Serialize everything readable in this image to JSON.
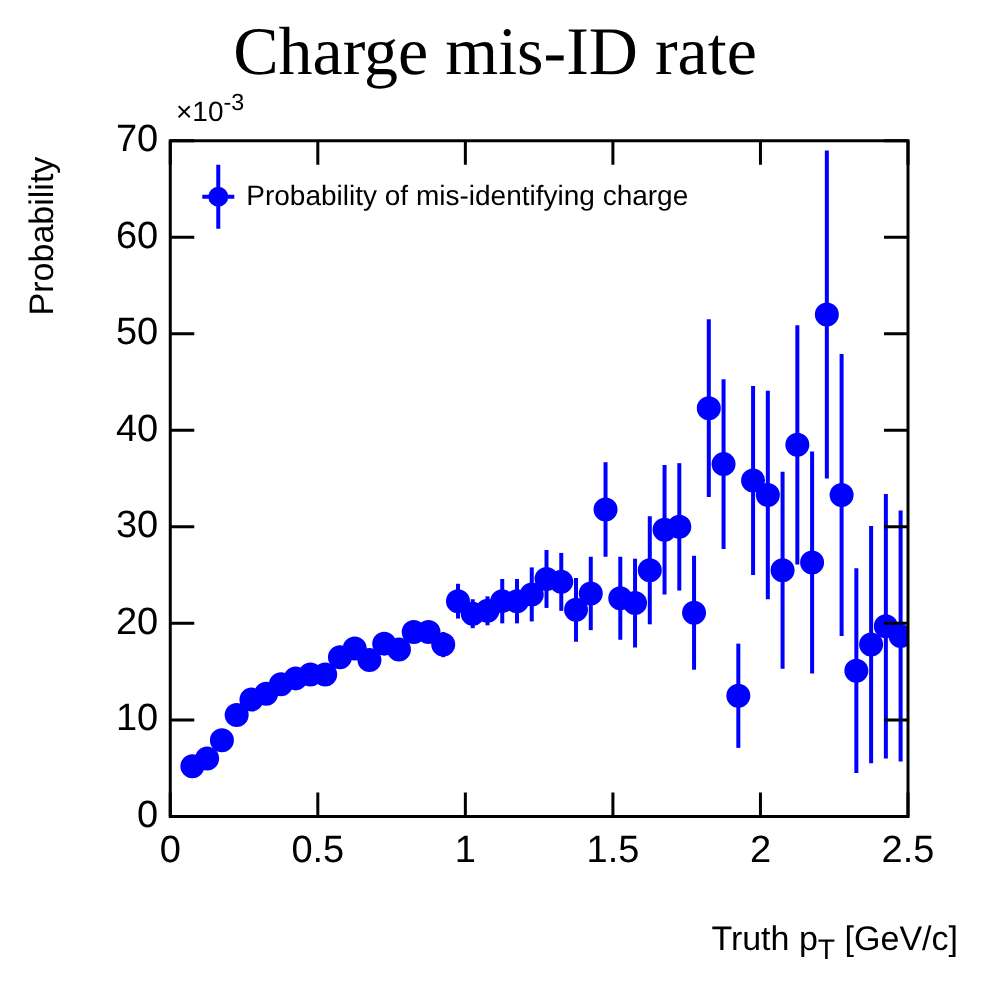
{
  "chart_data": {
    "type": "scatter",
    "title": "Charge mis-ID rate",
    "xlabel": "Truth p$_{T}$ [GeV/c]",
    "ylabel": "Probability",
    "annotations": [
      "×10$^{-3}$"
    ],
    "x": [
      0.075,
      0.125,
      0.175,
      0.225,
      0.275,
      0.325,
      0.375,
      0.425,
      0.475,
      0.525,
      0.575,
      0.625,
      0.675,
      0.725,
      0.775,
      0.825,
      0.875,
      0.925,
      0.975,
      1.025,
      1.075,
      1.125,
      1.175,
      1.225,
      1.275,
      1.325,
      1.375,
      1.425,
      1.475,
      1.525,
      1.575,
      1.625,
      1.675,
      1.725,
      1.775,
      1.825,
      1.875,
      1.925,
      1.975,
      2.025,
      2.075,
      2.125,
      2.175,
      2.225,
      2.275,
      2.325,
      2.375,
      2.425,
      2.475
    ],
    "series": [
      {
        "name": "Probability of mis-identifying charge",
        "color": "#0000ff",
        "values": [
          5.2,
          6.0,
          7.9,
          10.5,
          12.1,
          12.7,
          13.7,
          14.3,
          14.7,
          14.7,
          16.5,
          17.4,
          16.2,
          17.9,
          17.3,
          19.1,
          19.1,
          17.8,
          22.3,
          21.0,
          21.3,
          22.3,
          22.3,
          23.0,
          24.6,
          24.3,
          21.4,
          23.1,
          31.8,
          22.6,
          22.1,
          25.5,
          29.7,
          30.0,
          21.1,
          42.3,
          36.5,
          12.5,
          34.8,
          33.3,
          25.5,
          38.5,
          26.3,
          52.0,
          33.3,
          15.1,
          17.8,
          19.7,
          18.7
        ],
        "errors": [
          null,
          null,
          null,
          null,
          null,
          null,
          null,
          null,
          null,
          null,
          null,
          null,
          null,
          null,
          null,
          1.0,
          1.0,
          1.3,
          1.8,
          1.5,
          1.5,
          2.3,
          2.3,
          2.8,
          3.0,
          3.0,
          3.3,
          3.8,
          4.9,
          4.3,
          4.6,
          5.6,
          6.7,
          6.6,
          5.9,
          9.2,
          8.8,
          5.4,
          9.8,
          10.8,
          10.2,
          12.4,
          11.5,
          17,
          14.6,
          10.6,
          12.3,
          13.7,
          13.0
        ]
      }
    ],
    "xlim": [
      0,
      2.5
    ],
    "xticks": [
      0,
      0.5,
      1,
      1.5,
      2,
      2.5
    ],
    "ylim": [
      0,
      70
    ],
    "yticks": [
      0,
      10,
      20,
      30,
      40,
      50,
      60,
      70
    ],
    "grid": false,
    "legend": "top left",
    "marker": "circle"
  }
}
